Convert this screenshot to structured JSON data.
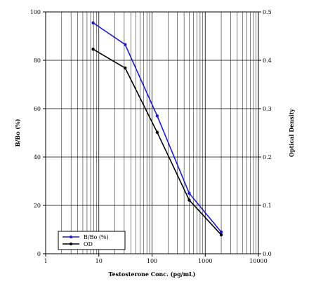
{
  "chart_data": {
    "type": "line",
    "title": "",
    "xlabel": "Testosterone Conc. (pg/mL)",
    "ylabel": "B/Bo (%)",
    "y2label": "Optical Density",
    "xscale": "log",
    "xlim": [
      1,
      10000
    ],
    "ylim": [
      0,
      100
    ],
    "y2lim": [
      0,
      0.5
    ],
    "x_ticks": [
      "1",
      "10",
      "100",
      "1000",
      "10000"
    ],
    "y_ticks": [
      "0",
      "20",
      "40",
      "60",
      "80",
      "100"
    ],
    "y2_ticks": [
      "0.0",
      "0.1",
      "0.2",
      "0.3",
      "0.4",
      "0.5"
    ],
    "grid": true,
    "legend_position": "bottom-left",
    "series": [
      {
        "name": "B/Bo (%)",
        "axis": "left",
        "color": "#1a1adf",
        "x": [
          7.8,
          31.25,
          125,
          500,
          2000
        ],
        "values": [
          95.5,
          86.5,
          57,
          25,
          9
        ]
      },
      {
        "name": "OD",
        "axis": "right",
        "color": "#000000",
        "x": [
          7.8,
          31.25,
          125,
          500,
          2000
        ],
        "values": [
          0.423,
          0.384,
          0.251,
          0.111,
          0.039
        ]
      }
    ]
  }
}
